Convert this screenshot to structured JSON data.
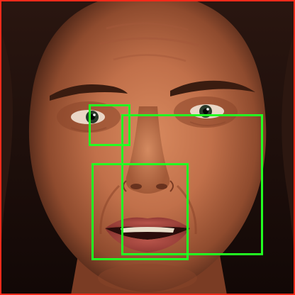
{
  "image": {
    "subject": "face-photo",
    "frame_color": "#ff2a1a",
    "box_color": "#22ff22"
  },
  "detections": [
    {
      "name": "left-eye-box"
    },
    {
      "name": "right-cheek-box"
    },
    {
      "name": "mouth-box"
    }
  ]
}
